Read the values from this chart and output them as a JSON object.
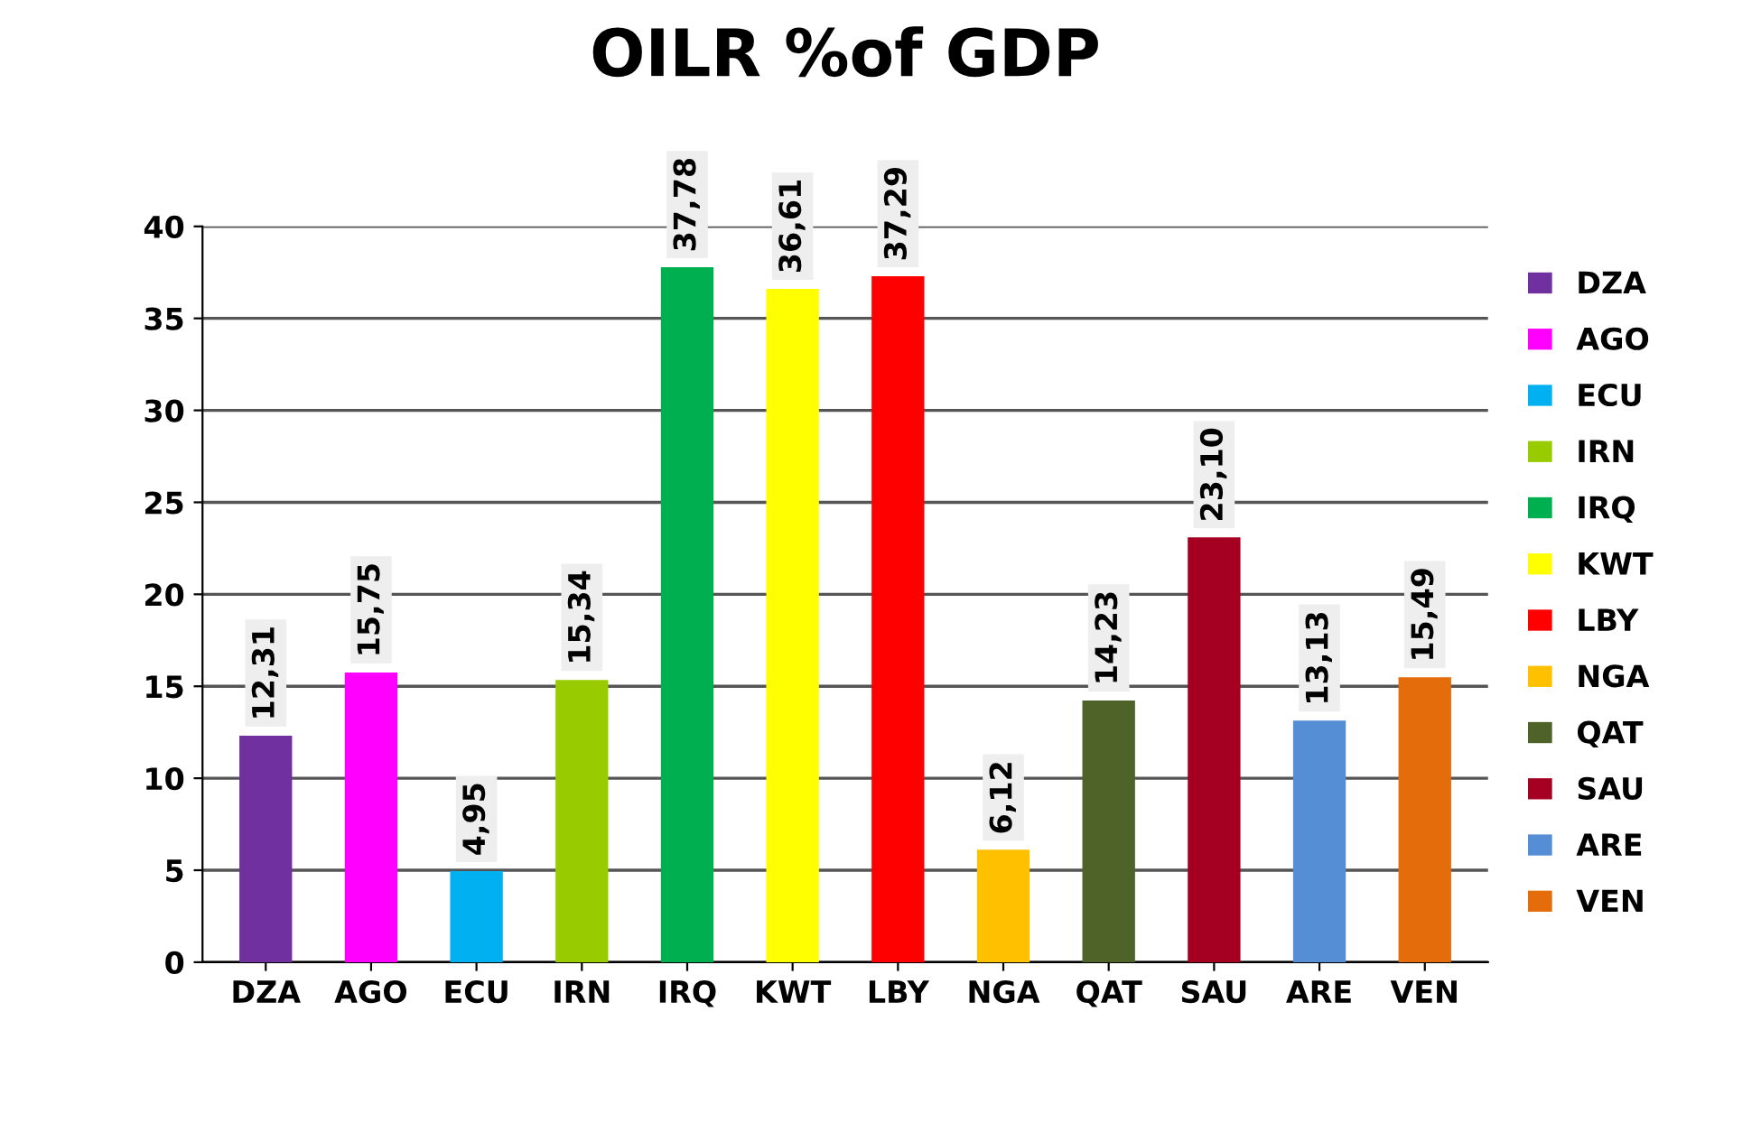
{
  "chart_data": {
    "type": "bar",
    "title": "OILR %of GDP",
    "categories": [
      "DZA",
      "AGO",
      "ECU",
      "IRN",
      "IRQ",
      "KWT",
      "LBY",
      "NGA",
      "QAT",
      "SAU",
      "ARE",
      "VEN"
    ],
    "series": [
      {
        "name": "DZA",
        "color": "#7030a0",
        "values": [
          12.31,
          null,
          null,
          null,
          null,
          null,
          null,
          null,
          null,
          null,
          null,
          null
        ],
        "value_labels": [
          "12,31",
          null,
          null,
          null,
          null,
          null,
          null,
          null,
          null,
          null,
          null,
          null
        ]
      },
      {
        "name": "AGO",
        "color": "#ff00ff",
        "values": [
          null,
          15.75,
          null,
          null,
          null,
          null,
          null,
          null,
          null,
          null,
          null,
          null
        ],
        "value_labels": [
          null,
          "15,75",
          null,
          null,
          null,
          null,
          null,
          null,
          null,
          null,
          null,
          null
        ]
      },
      {
        "name": "ECU",
        "color": "#00b0f0",
        "values": [
          null,
          null,
          4.95,
          null,
          null,
          null,
          null,
          null,
          null,
          null,
          null,
          null
        ],
        "value_labels": [
          null,
          null,
          "4,95",
          null,
          null,
          null,
          null,
          null,
          null,
          null,
          null,
          null
        ]
      },
      {
        "name": "IRN",
        "color": "#99cc00",
        "values": [
          null,
          null,
          null,
          15.34,
          null,
          null,
          null,
          null,
          null,
          null,
          null,
          null
        ],
        "value_labels": [
          null,
          null,
          null,
          "15,34",
          null,
          null,
          null,
          null,
          null,
          null,
          null,
          null
        ]
      },
      {
        "name": "IRQ",
        "color": "#00b050",
        "values": [
          null,
          null,
          null,
          null,
          37.78,
          null,
          null,
          null,
          null,
          null,
          null,
          null
        ],
        "value_labels": [
          null,
          null,
          null,
          null,
          "37,78",
          null,
          null,
          null,
          null,
          null,
          null,
          null
        ]
      },
      {
        "name": "KWT",
        "color": "#ffff00",
        "values": [
          null,
          null,
          null,
          null,
          null,
          36.61,
          null,
          null,
          null,
          null,
          null,
          null
        ],
        "value_labels": [
          null,
          null,
          null,
          null,
          null,
          "36,61",
          null,
          null,
          null,
          null,
          null,
          null
        ]
      },
      {
        "name": "LBY",
        "color": "#ff0000",
        "values": [
          null,
          null,
          null,
          null,
          null,
          null,
          37.29,
          null,
          null,
          null,
          null,
          null
        ],
        "value_labels": [
          null,
          null,
          null,
          null,
          null,
          null,
          "37,29",
          null,
          null,
          null,
          null,
          null
        ]
      },
      {
        "name": "NGA",
        "color": "#ffc000",
        "values": [
          null,
          null,
          null,
          null,
          null,
          null,
          null,
          6.12,
          null,
          null,
          null,
          null
        ],
        "value_labels": [
          null,
          null,
          null,
          null,
          null,
          null,
          null,
          "6,12",
          null,
          null,
          null,
          null
        ]
      },
      {
        "name": "QAT",
        "color": "#4f6228",
        "values": [
          null,
          null,
          null,
          null,
          null,
          null,
          null,
          null,
          14.23,
          null,
          null,
          null
        ],
        "value_labels": [
          null,
          null,
          null,
          null,
          null,
          null,
          null,
          null,
          "14,23",
          null,
          null,
          null
        ]
      },
      {
        "name": "SAU",
        "color": "#a50021",
        "values": [
          null,
          null,
          null,
          null,
          null,
          null,
          null,
          null,
          null,
          23.1,
          null,
          null
        ],
        "value_labels": [
          null,
          null,
          null,
          null,
          null,
          null,
          null,
          null,
          null,
          "23,10",
          null,
          null
        ]
      },
      {
        "name": "ARE",
        "color": "#558ed5",
        "values": [
          null,
          null,
          null,
          null,
          null,
          null,
          null,
          null,
          null,
          null,
          13.13,
          null
        ],
        "value_labels": [
          null,
          null,
          null,
          null,
          null,
          null,
          null,
          null,
          null,
          null,
          "13,13",
          null
        ]
      },
      {
        "name": "VEN",
        "color": "#e46c0a",
        "values": [
          null,
          null,
          null,
          null,
          null,
          null,
          null,
          null,
          null,
          null,
          null,
          15.49
        ],
        "value_labels": [
          null,
          null,
          null,
          null,
          null,
          null,
          null,
          null,
          null,
          null,
          null,
          "15,49"
        ]
      }
    ],
    "ylim": [
      0,
      40
    ],
    "yticks": [
      0,
      5,
      10,
      15,
      20,
      25,
      30,
      35,
      40
    ],
    "grid": "y",
    "legend": "right"
  }
}
